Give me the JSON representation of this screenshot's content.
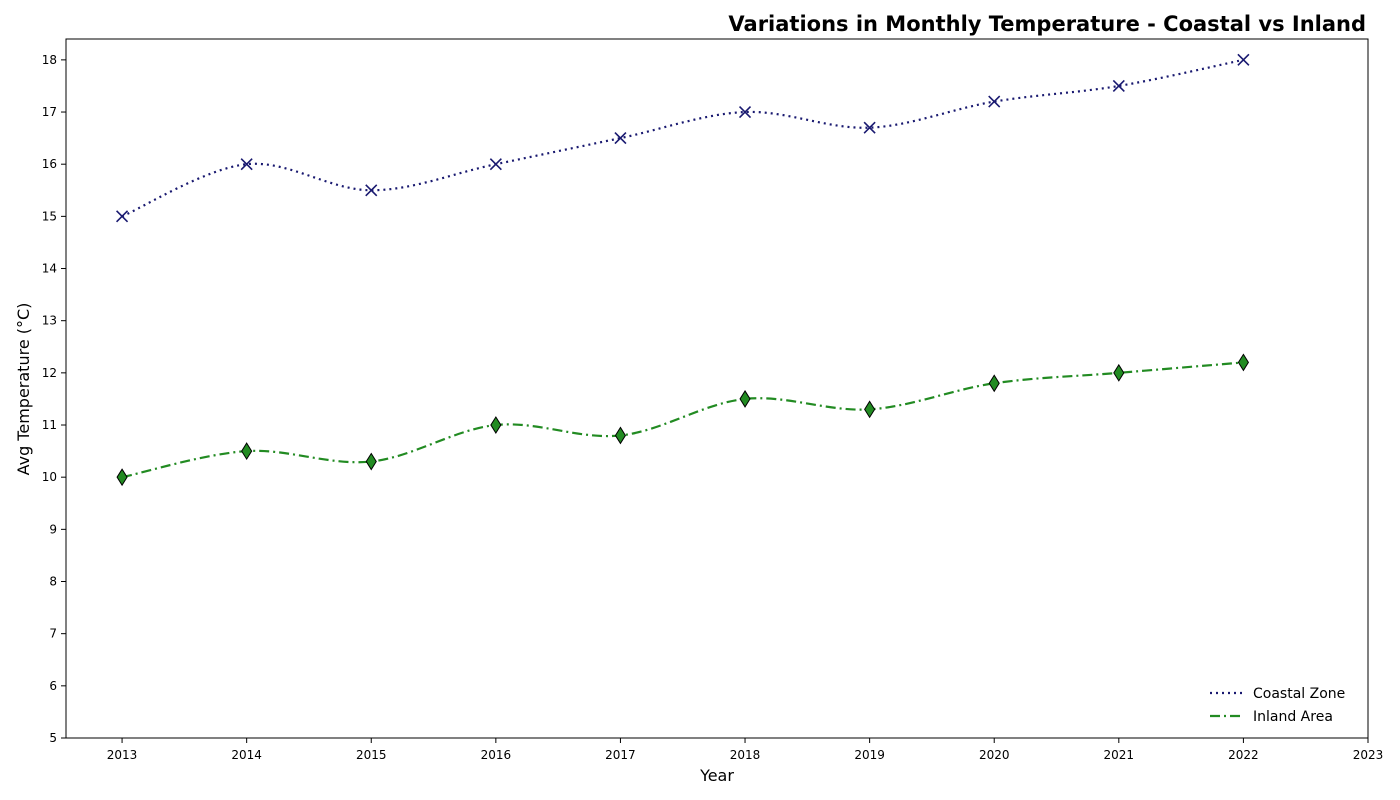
{
  "chart_data": {
    "type": "line",
    "title": "Variations in Monthly Temperature - Coastal vs Inland",
    "xlabel": "Year",
    "ylabel": "Avg Temperature (°C)",
    "xlim": [
      2012.55,
      2023
    ],
    "ylim": [
      5,
      18.4
    ],
    "xticks": [
      2013,
      2014,
      2015,
      2016,
      2017,
      2018,
      2019,
      2020,
      2021,
      2022,
      2023
    ],
    "yticks": [
      5,
      6,
      7,
      8,
      9,
      10,
      11,
      12,
      13,
      14,
      15,
      16,
      17,
      18
    ],
    "grid": false,
    "legend_position": "lower-right",
    "x": [
      2013,
      2014,
      2015,
      2016,
      2017,
      2018,
      2019,
      2020,
      2021,
      2022
    ],
    "series": [
      {
        "name": "Coastal Zone",
        "values": [
          15.0,
          16.0,
          15.5,
          16.0,
          16.5,
          17.0,
          16.7,
          17.2,
          17.5,
          18.0
        ],
        "color": "#191970",
        "line_style": "dotted",
        "marker": "x"
      },
      {
        "name": "Inland Area",
        "values": [
          10.0,
          10.5,
          10.3,
          11.0,
          10.8,
          11.5,
          11.3,
          11.8,
          12.0,
          12.2
        ],
        "color": "#228b22",
        "line_style": "dash-dot",
        "marker": "diamond"
      }
    ]
  }
}
